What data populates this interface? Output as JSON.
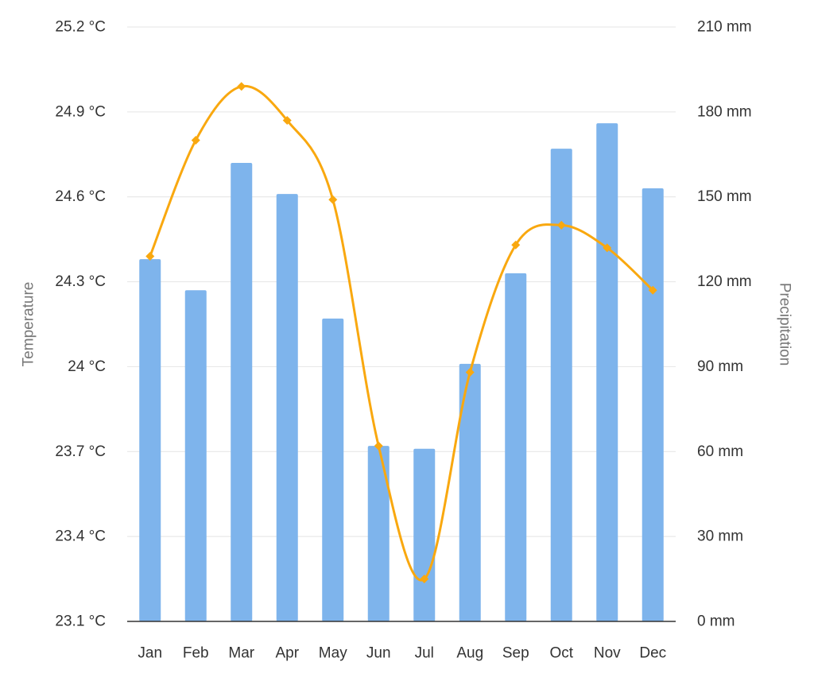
{
  "chart_data": {
    "type": "bar",
    "categories": [
      "Jan",
      "Feb",
      "Mar",
      "Apr",
      "May",
      "Jun",
      "Jul",
      "Aug",
      "Sep",
      "Oct",
      "Nov",
      "Dec"
    ],
    "series": [
      {
        "name": "Precipitation",
        "type": "bar",
        "axis": "right",
        "color": "#7eb4ec",
        "values": [
          128,
          117,
          162,
          151,
          107,
          62,
          61,
          91,
          123,
          167,
          176,
          153
        ]
      },
      {
        "name": "Temperature",
        "type": "line",
        "axis": "left",
        "color": "#f9a80f",
        "values": [
          24.39,
          24.8,
          24.99,
          24.87,
          24.59,
          23.72,
          23.25,
          23.98,
          24.43,
          24.5,
          24.42,
          24.27
        ]
      }
    ],
    "y_left": {
      "label": "Temperature",
      "ylim": [
        23.1,
        25.2
      ],
      "ticks": [
        23.1,
        23.4,
        23.7,
        24.0,
        24.3,
        24.6,
        24.9,
        25.2
      ],
      "tick_labels": [
        "23.1 °C",
        "23.4 °C",
        "23.7 °C",
        "24 °C",
        "24.3 °C",
        "24.6 °C",
        "24.9 °C",
        "25.2 °C"
      ]
    },
    "y_right": {
      "label": "Precipitation",
      "ylim": [
        0,
        210
      ],
      "ticks": [
        0,
        30,
        60,
        90,
        120,
        150,
        180,
        210
      ],
      "tick_labels": [
        "0 mm",
        "30 mm",
        "60 mm",
        "90 mm",
        "120 mm",
        "150 mm",
        "180 mm",
        "210 mm"
      ]
    },
    "grid": true,
    "legend": "none"
  }
}
